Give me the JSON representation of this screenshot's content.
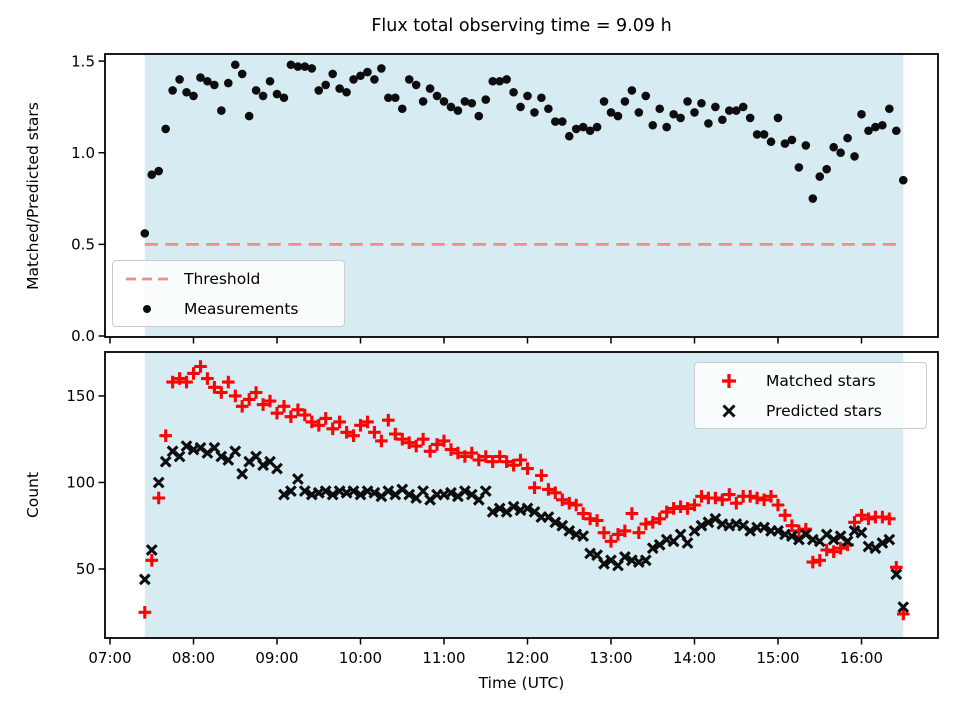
{
  "figure": {
    "title": "Flux total observing time = 9.09 h",
    "background": "#ffffff"
  },
  "chart_data": {
    "type": "scatter",
    "x_label": "Time (UTC)",
    "x_ticks": [
      "07:00",
      "08:00",
      "09:00",
      "10:00",
      "11:00",
      "12:00",
      "13:00",
      "14:00",
      "15:00",
      "16:00"
    ],
    "shaded_region": {
      "start": "07:25",
      "end": "16:30",
      "color": "#d6ebf2"
    },
    "times": [
      "07:25",
      "07:30",
      "07:35",
      "07:40",
      "07:45",
      "07:50",
      "07:55",
      "08:00",
      "08:05",
      "08:10",
      "08:15",
      "08:20",
      "08:25",
      "08:30",
      "08:35",
      "08:40",
      "08:45",
      "08:50",
      "08:55",
      "09:00",
      "09:05",
      "09:10",
      "09:15",
      "09:20",
      "09:25",
      "09:30",
      "09:35",
      "09:40",
      "09:45",
      "09:50",
      "09:55",
      "10:00",
      "10:05",
      "10:10",
      "10:15",
      "10:20",
      "10:25",
      "10:30",
      "10:35",
      "10:40",
      "10:45",
      "10:50",
      "10:55",
      "11:00",
      "11:05",
      "11:10",
      "11:15",
      "11:20",
      "11:25",
      "11:30",
      "11:35",
      "11:40",
      "11:45",
      "11:50",
      "11:55",
      "12:00",
      "12:05",
      "12:10",
      "12:15",
      "12:20",
      "12:25",
      "12:30",
      "12:35",
      "12:40",
      "12:45",
      "12:50",
      "12:55",
      "13:00",
      "13:05",
      "13:10",
      "13:15",
      "13:20",
      "13:25",
      "13:30",
      "13:35",
      "13:40",
      "13:45",
      "13:50",
      "13:55",
      "14:00",
      "14:05",
      "14:10",
      "14:15",
      "14:20",
      "14:25",
      "14:30",
      "14:35",
      "14:40",
      "14:45",
      "14:50",
      "14:55",
      "15:00",
      "15:05",
      "15:10",
      "15:15",
      "15:20",
      "15:25",
      "15:30",
      "15:35",
      "15:40",
      "15:45",
      "15:50",
      "15:55",
      "16:00",
      "16:05",
      "16:10",
      "16:15",
      "16:20",
      "16:25",
      "16:30"
    ],
    "subplots": [
      {
        "name": "ratio",
        "ylabel": "Matched/Predicted stars",
        "ylim": [
          0,
          1.5
        ],
        "yticks": [
          "0.0",
          "0.5",
          "1.0",
          "1.5"
        ],
        "threshold": 0.5,
        "legend": [
          {
            "label": "Threshold",
            "marker": "dashed-line",
            "color": "#f58a8a"
          },
          {
            "label": "Measurements",
            "marker": "dot",
            "color": "#0d0d0d"
          }
        ],
        "series": [
          {
            "name": "Measurements",
            "marker": "dot",
            "color": "#0d0d0d",
            "values": [
              0.56,
              0.88,
              0.9,
              1.13,
              1.34,
              1.4,
              1.33,
              1.31,
              1.41,
              1.39,
              1.37,
              1.23,
              1.38,
              1.48,
              1.43,
              1.2,
              1.34,
              1.31,
              1.39,
              1.32,
              1.3,
              1.48,
              1.47,
              1.47,
              1.46,
              1.34,
              1.37,
              1.43,
              1.35,
              1.33,
              1.4,
              1.42,
              1.44,
              1.4,
              1.46,
              1.3,
              1.3,
              1.24,
              1.4,
              1.37,
              1.28,
              1.35,
              1.31,
              1.28,
              1.25,
              1.23,
              1.28,
              1.27,
              1.2,
              1.29,
              1.39,
              1.39,
              1.4,
              1.33,
              1.25,
              1.31,
              1.22,
              1.3,
              1.24,
              1.17,
              1.17,
              1.09,
              1.13,
              1.14,
              1.12,
              1.14,
              1.28,
              1.22,
              1.2,
              1.28,
              1.34,
              1.22,
              1.31,
              1.15,
              1.24,
              1.14,
              1.21,
              1.19,
              1.28,
              1.22,
              1.27,
              1.16,
              1.25,
              1.18,
              1.23,
              1.23,
              1.25,
              1.19,
              1.1,
              1.1,
              1.06,
              1.19,
              1.05,
              1.07,
              0.92,
              1.04,
              0.75,
              0.87,
              0.91,
              1.03,
              1.0,
              1.08,
              0.98,
              1.21,
              1.12,
              1.14,
              1.15,
              1.24,
              1.12,
              0.85
            ]
          }
        ]
      },
      {
        "name": "counts",
        "ylabel": "Count",
        "ylim": [
          10,
          175
        ],
        "yticks": [
          "50",
          "100",
          "150"
        ],
        "legend": [
          {
            "label": "Matched stars",
            "marker": "plus",
            "color": "#fb0404"
          },
          {
            "label": "Predicted stars",
            "marker": "x",
            "color": "#0d0d0d"
          }
        ],
        "series": [
          {
            "name": "Matched stars",
            "marker": "plus",
            "color": "#fb0404",
            "values": [
              25,
              55,
              91,
              127,
              158,
              160,
              158,
              163,
              167,
              160,
              155,
              152,
              158,
              150,
              144,
              148,
              152,
              145,
              147,
              140,
              144,
              138,
              142,
              139,
              135,
              133,
              137,
              131,
              135,
              129,
              127,
              133,
              135,
              129,
              124,
              136,
              128,
              125,
              123,
              121,
              125,
              118,
              122,
              124,
              119,
              117,
              115,
              117,
              113,
              115,
              112,
              115,
              112,
              110,
              113,
              108,
              97,
              104,
              96,
              94,
              90,
              88,
              87,
              82,
              79,
              78,
              71,
              66,
              70,
              72,
              82,
              71,
              76,
              77,
              79,
              83,
              85,
              86,
              85,
              87,
              92,
              91,
              91,
              90,
              93,
              88,
              92,
              92,
              91,
              90,
              92,
              87,
              81,
              75,
              72,
              73,
              54,
              55,
              61,
              60,
              62,
              64,
              77,
              81,
              79,
              80,
              80,
              79,
              51,
              24
            ]
          },
          {
            "name": "Predicted stars",
            "marker": "x",
            "color": "#0d0d0d",
            "values": [
              44,
              61,
              100,
              112,
              118,
              115,
              121,
              119,
              120,
              117,
              120,
              115,
              113,
              118,
              105,
              112,
              115,
              110,
              112,
              108,
              93,
              95,
              102,
              95,
              93,
              94,
              95,
              93,
              95,
              94,
              95,
              93,
              95,
              94,
              92,
              95,
              93,
              96,
              93,
              91,
              95,
              90,
              93,
              93,
              94,
              92,
              95,
              93,
              90,
              95,
              83,
              85,
              83,
              86,
              84,
              85,
              83,
              80,
              80,
              77,
              75,
              72,
              70,
              69,
              59,
              58,
              53,
              55,
              52,
              57,
              55,
              54,
              55,
              62,
              64,
              67,
              66,
              70,
              65,
              72,
              75,
              77,
              79,
              76,
              75,
              76,
              75,
              72,
              74,
              74,
              72,
              72,
              70,
              69,
              67,
              70,
              67,
              66,
              70,
              67,
              69,
              66,
              72,
              71,
              63,
              62,
              65,
              67,
              47,
              28
            ]
          }
        ]
      }
    ]
  }
}
